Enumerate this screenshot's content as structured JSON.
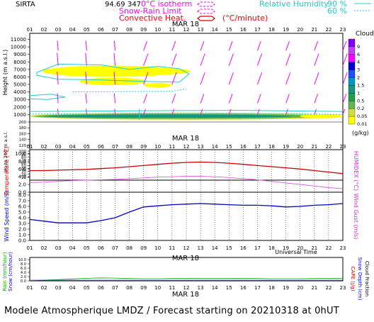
{
  "header": {
    "station": "SIRTA",
    "station_code": "94.69",
    "station_alt": "347",
    "legend_isotherm": "0°C isotherm",
    "legend_snow_rain": "Snow-Rain Limit",
    "legend_convective": "Convective Heat.",
    "legend_convective_unit": "(°C/minute)",
    "legend_rh": "Relative Humidity",
    "legend_rh_90": "90 %",
    "legend_rh_60": "60 %"
  },
  "hours": [
    "01",
    "02",
    "03",
    "04",
    "05",
    "06",
    "07",
    "08",
    "09",
    "10",
    "11",
    "12",
    "13",
    "14",
    "15",
    "16",
    "17",
    "18",
    "19",
    "20",
    "21",
    "22",
    "23"
  ],
  "date_label": "MAR 18",
  "cloud_panel": {
    "ylabel": "Height (m a.s.l.)",
    "ylabel_low": "Up to 200 m a.s.l.",
    "yticks_upper": [
      "1000",
      "2000",
      "3000",
      "4000",
      "5000",
      "6000",
      "7000",
      "8000",
      "9000",
      "10000",
      "11000"
    ],
    "yticks_lower": [
      "10",
      "20",
      "30",
      "40",
      "50",
      "60",
      "70",
      "80",
      "90",
      "100",
      "120",
      "140",
      "160",
      "180",
      "200"
    ],
    "cb_title": "Clouds",
    "cb_levels": [
      "9",
      "6",
      "4",
      "3",
      "2",
      "1.5",
      "1",
      "0.5",
      "0.2",
      "0.05",
      "0.01"
    ],
    "cb_unit": "(g/kg)",
    "cb_colors": [
      "#7f00ff",
      "#c83cff",
      "#ff00ff",
      "#0000cd",
      "#1e50ff",
      "#0096c8",
      "#149682",
      "#1ea050",
      "#64b450",
      "#d2dc3c",
      "#ffff00"
    ]
  },
  "temp_panel": {
    "ylabel": "Temperature (°C)",
    "ylabel_right": "HUMIDEX (°C)",
    "yticks": [
      "0.0",
      "2.0",
      "4.0",
      "6.0",
      "8.0",
      "10.0"
    ],
    "temperature": [
      5.6,
      5.6,
      5.7,
      5.8,
      5.9,
      6.1,
      6.3,
      6.6,
      6.9,
      7.2,
      7.5,
      7.7,
      7.8,
      7.7,
      7.5,
      7.2,
      6.9,
      6.6,
      6.3,
      6.0,
      5.6,
      5.2,
      4.8
    ],
    "humidex": [
      2.5,
      2.6,
      2.8,
      3.0,
      3.1,
      3.2,
      3.3,
      3.5,
      3.7,
      3.9,
      4.0,
      4.1,
      4.1,
      4.0,
      3.8,
      3.5,
      3.2,
      2.8,
      2.4,
      2.0,
      1.6,
      1.2,
      0.9
    ]
  },
  "wind_panel": {
    "ylabel": "Wind Speed (m/s)",
    "ylabel_right": "Wind Gust (m/s)",
    "yticks": [
      "0.0",
      "1.0",
      "2.0",
      "3.0",
      "4.0",
      "5.0",
      "6.0",
      "7.0",
      "8.0"
    ],
    "wind_speed": [
      3.7,
      3.4,
      3.1,
      3.1,
      3.1,
      3.5,
      4.0,
      5.0,
      5.9,
      6.1,
      6.3,
      6.4,
      6.5,
      6.4,
      6.3,
      6.2,
      6.2,
      6.1,
      5.9,
      6.0,
      6.2,
      6.3,
      6.5
    ],
    "xlabel": "Universal Time"
  },
  "precip_panel": {
    "ylabel": "Rain (mm/hour)",
    "ylabel2": "Snow (cm/hour)",
    "ylabel_right": "CAPE (J/g)",
    "ylabel_right2": "Snow Depth (cm)",
    "ylabel_right3": "Cloud Fraction",
    "yticks": [
      "0.0",
      "2.0",
      "4.0",
      "6.0",
      "8.0",
      "10.0"
    ]
  },
  "footer": "Modele Atmospherique LMDZ / Forecast starting on 20210318 at 0hUT"
}
